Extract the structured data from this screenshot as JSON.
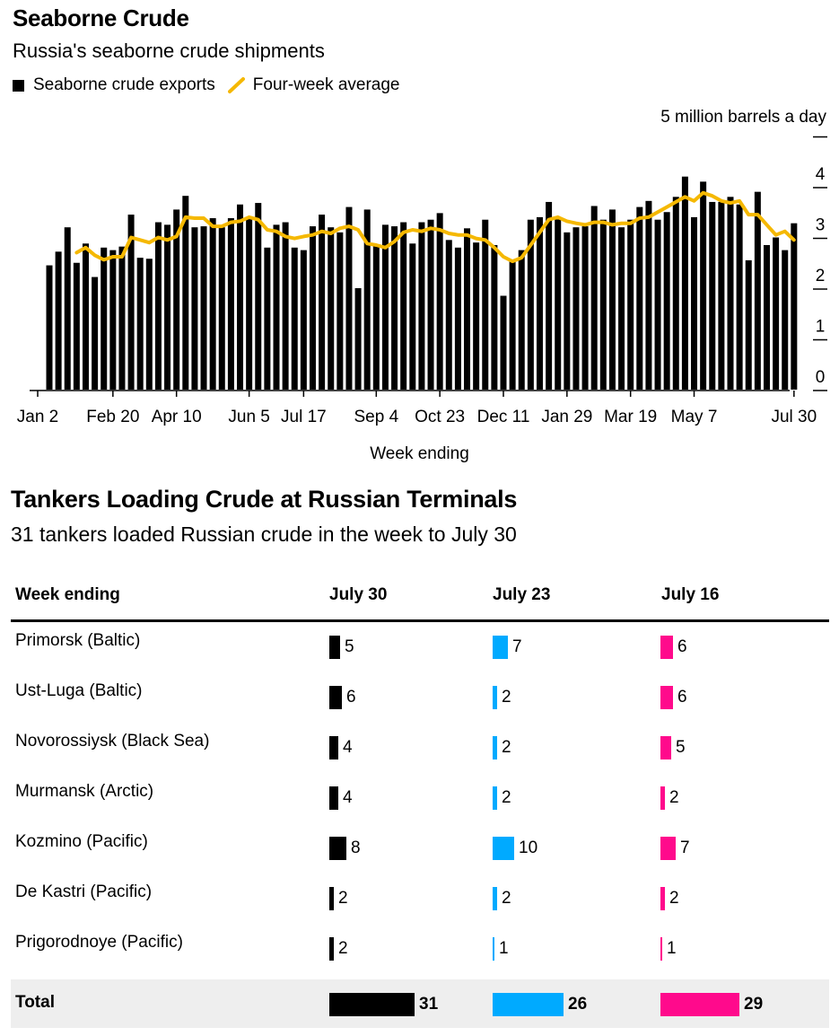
{
  "chart_data": [
    {
      "type": "bar+line",
      "title": "Seaborne Crude",
      "subtitle": "Russia's seaborne crude shipments",
      "unit_label": "5 million barrels a day",
      "xlabel": "Week ending",
      "ylabel": "",
      "ylim": [
        0,
        5
      ],
      "yticks": [
        0,
        1,
        2,
        3,
        4
      ],
      "xtick_labels": [
        "Jan 2",
        "Feb 20",
        "Apr 10",
        "Jun 5",
        "Jul 17",
        "Sep 4",
        "Oct 23",
        "Dec 11",
        "Jan 29",
        "Mar 19",
        "May 7",
        "Jul 30"
      ],
      "xtick_index": [
        0,
        7,
        14,
        22,
        28,
        36,
        43,
        50,
        57,
        64,
        71,
        82
      ],
      "legend": [
        "Seaborne crude exports",
        "Four-week average"
      ],
      "colors": {
        "bars": "#000000",
        "average": "#f5b800"
      },
      "series": [
        {
          "name": "Seaborne crude exports",
          "values": [
            2.45,
            2.72,
            3.2,
            2.5,
            2.88,
            2.22,
            2.8,
            2.75,
            2.82,
            3.45,
            2.6,
            2.58,
            3.3,
            3.25,
            3.55,
            3.82,
            3.2,
            3.22,
            3.38,
            3.2,
            3.38,
            3.65,
            3.38,
            3.68,
            2.8,
            3.25,
            3.3,
            2.8,
            2.75,
            3.22,
            3.45,
            3.2,
            3.1,
            3.6,
            2.0,
            3.55,
            2.85,
            3.25,
            3.22,
            3.3,
            2.88,
            3.3,
            3.35,
            3.48,
            2.95,
            2.8,
            3.18,
            2.9,
            3.35,
            2.85,
            1.85,
            2.55,
            2.75,
            3.35,
            3.4,
            3.7,
            3.4,
            3.1,
            3.2,
            3.22,
            3.62,
            3.35,
            3.55,
            3.2,
            3.35,
            3.6,
            3.72,
            3.35,
            3.5,
            3.8,
            4.2,
            3.4,
            4.1,
            3.7,
            3.7,
            3.8,
            3.65,
            2.55,
            3.9,
            2.85,
            3.0,
            2.75,
            3.28
          ],
          "average": [
            null,
            null,
            null,
            2.7,
            2.8,
            2.65,
            2.56,
            2.62,
            2.62,
            3.0,
            2.95,
            2.9,
            3.0,
            2.95,
            3.02,
            3.4,
            3.38,
            3.38,
            3.22,
            3.22,
            3.3,
            3.32,
            3.4,
            3.35,
            3.15,
            3.12,
            3.02,
            2.98,
            3.02,
            3.05,
            3.12,
            3.08,
            3.18,
            3.22,
            3.15,
            2.88,
            2.85,
            2.8,
            2.92,
            3.1,
            3.15,
            3.12,
            3.18,
            3.15,
            3.08,
            3.05,
            3.05,
            2.98,
            2.95,
            2.8,
            2.62,
            2.53,
            2.6,
            2.85,
            3.1,
            3.35,
            3.4,
            3.32,
            3.28,
            3.25,
            3.3,
            3.3,
            3.25,
            3.28,
            3.28,
            3.38,
            3.4,
            3.5,
            3.6,
            3.7,
            3.8,
            3.72,
            3.88,
            3.82,
            3.72,
            3.68,
            3.72,
            3.45,
            3.45,
            3.25,
            3.05,
            3.12,
            2.95
          ]
        }
      ]
    },
    {
      "type": "table",
      "title": "Tankers Loading Crude at Russian Terminals",
      "subtitle": "31 tankers loaded Russian crude in the week to July 30",
      "header": "Week ending",
      "columns": [
        "July 30",
        "July 23",
        "July 16"
      ],
      "colors": [
        "#000000",
        "#00aaff",
        "#ff0a8c"
      ],
      "rows": [
        {
          "label": "Primorsk (Baltic)",
          "values": [
            5,
            7,
            6
          ]
        },
        {
          "label": "Ust-Luga (Baltic)",
          "values": [
            6,
            2,
            6
          ]
        },
        {
          "label": "Novorossiysk (Black Sea)",
          "values": [
            4,
            2,
            5
          ]
        },
        {
          "label": "Murmansk (Arctic)",
          "values": [
            4,
            2,
            2
          ]
        },
        {
          "label": "Kozmino (Pacific)",
          "values": [
            8,
            10,
            7
          ]
        },
        {
          "label": "De Kastri (Pacific)",
          "values": [
            2,
            2,
            2
          ]
        },
        {
          "label": "Prigorodnoye (Pacific)",
          "values": [
            2,
            1,
            1
          ]
        }
      ],
      "total": {
        "label": "Total",
        "values": [
          31,
          26,
          29
        ]
      }
    }
  ]
}
